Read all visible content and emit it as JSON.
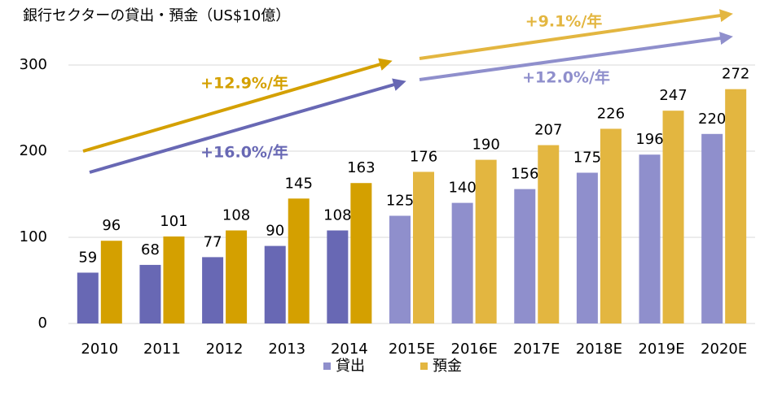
{
  "chart_data": {
    "type": "bar",
    "title": "銀行セクターの貸出・預金（US$10億）",
    "categories": [
      "2010",
      "2011",
      "2012",
      "2013",
      "2014",
      "2015E",
      "2016E",
      "2017E",
      "2018E",
      "2019E",
      "2020E"
    ],
    "series": [
      {
        "name": "貸出",
        "color": "#8f8fcc",
        "colors": [
          "#6868b4",
          "#6868b4",
          "#6868b4",
          "#6868b4",
          "#6868b4",
          "#8f8fcc",
          "#8f8fcc",
          "#8f8fcc",
          "#8f8fcc",
          "#8f8fcc",
          "#8f8fcc"
        ],
        "values": [
          59,
          68,
          77,
          90,
          108,
          125,
          140,
          156,
          175,
          196,
          220
        ]
      },
      {
        "name": "預金",
        "color": "#e3b640",
        "colors": [
          "#d4a000",
          "#d4a000",
          "#d4a000",
          "#d4a000",
          "#d4a000",
          "#e3b640",
          "#e3b640",
          "#e3b640",
          "#e3b640",
          "#e3b640",
          "#e3b640"
        ],
        "values": [
          96,
          101,
          108,
          145,
          163,
          176,
          190,
          207,
          226,
          247,
          272
        ]
      }
    ],
    "ylim": [
      0,
      300
    ],
    "yticks": [
      0,
      100,
      200,
      300
    ],
    "grid": true,
    "legend": "bottom",
    "annotations": [
      {
        "text": "+12.9%/年",
        "color": "#d4a000"
      },
      {
        "text": "+16.0%/年",
        "color": "#6868b4"
      },
      {
        "text": "+9.1%/年",
        "color": "#e3b640"
      },
      {
        "text": "+12.0%/年",
        "color": "#8f8fcc"
      }
    ]
  }
}
